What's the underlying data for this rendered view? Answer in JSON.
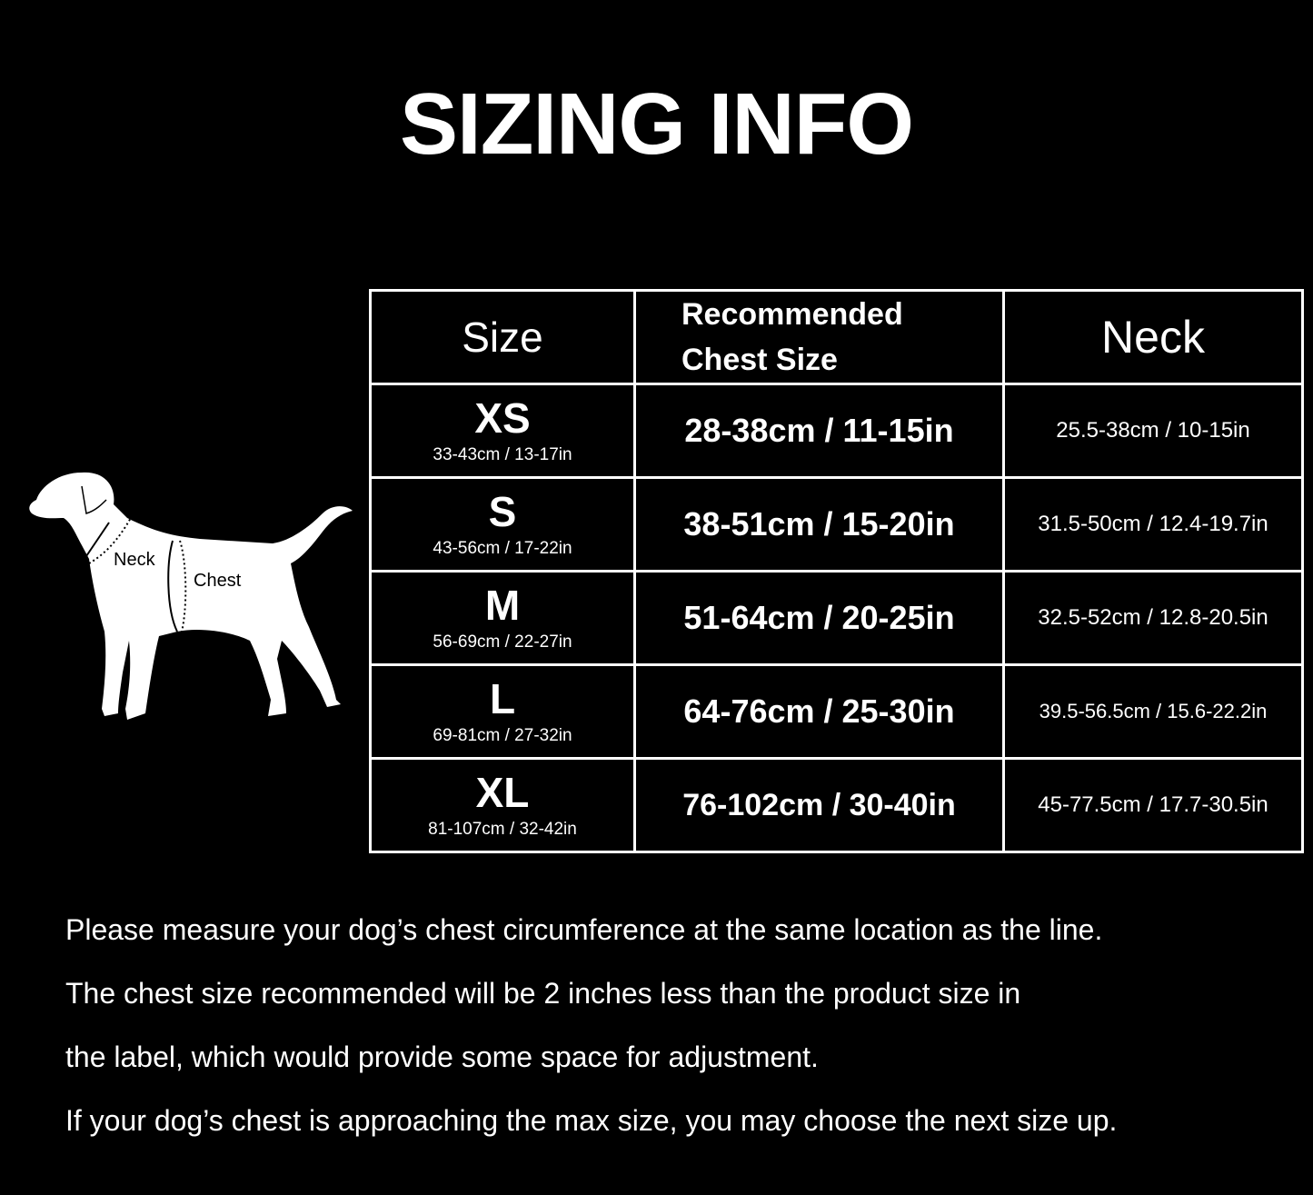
{
  "title": "SIZING INFO",
  "diagram": {
    "neck_label": "Neck",
    "chest_label": "Chest"
  },
  "table": {
    "headers": {
      "size": "Size",
      "chest": "Recommended Chest Size",
      "chest_line1": "Recommended",
      "chest_line2": "Chest Size",
      "neck": "Neck"
    },
    "rows": [
      {
        "size": "XS",
        "product_size": "33-43cm / 13-17in",
        "chest": "28-38cm / 11-15in",
        "neck": "25.5-38cm / 10-15in"
      },
      {
        "size": "S",
        "product_size": "43-56cm / 17-22in",
        "chest": "38-51cm / 15-20in",
        "neck": "31.5-50cm / 12.4-19.7in"
      },
      {
        "size": "M",
        "product_size": "56-69cm / 22-27in",
        "chest": "51-64cm / 20-25in",
        "neck": "32.5-52cm / 12.8-20.5in"
      },
      {
        "size": "L",
        "product_size": "69-81cm / 27-32in",
        "chest": "64-76cm / 25-30in",
        "neck": "39.5-56.5cm / 15.6-22.2in"
      },
      {
        "size": "XL",
        "product_size": "81-107cm / 32-42in",
        "chest": "76-102cm / 30-40in",
        "neck": "45-77.5cm / 17.7-30.5in"
      }
    ]
  },
  "notes": [
    "Please measure your dog’s chest circumference at the same location as the line.",
    "The chest size recommended will be 2 inches less than the product size in",
    "the label, which would provide some space for adjustment.",
    "If your dog’s chest is approaching the max size, you may choose the next size up."
  ]
}
